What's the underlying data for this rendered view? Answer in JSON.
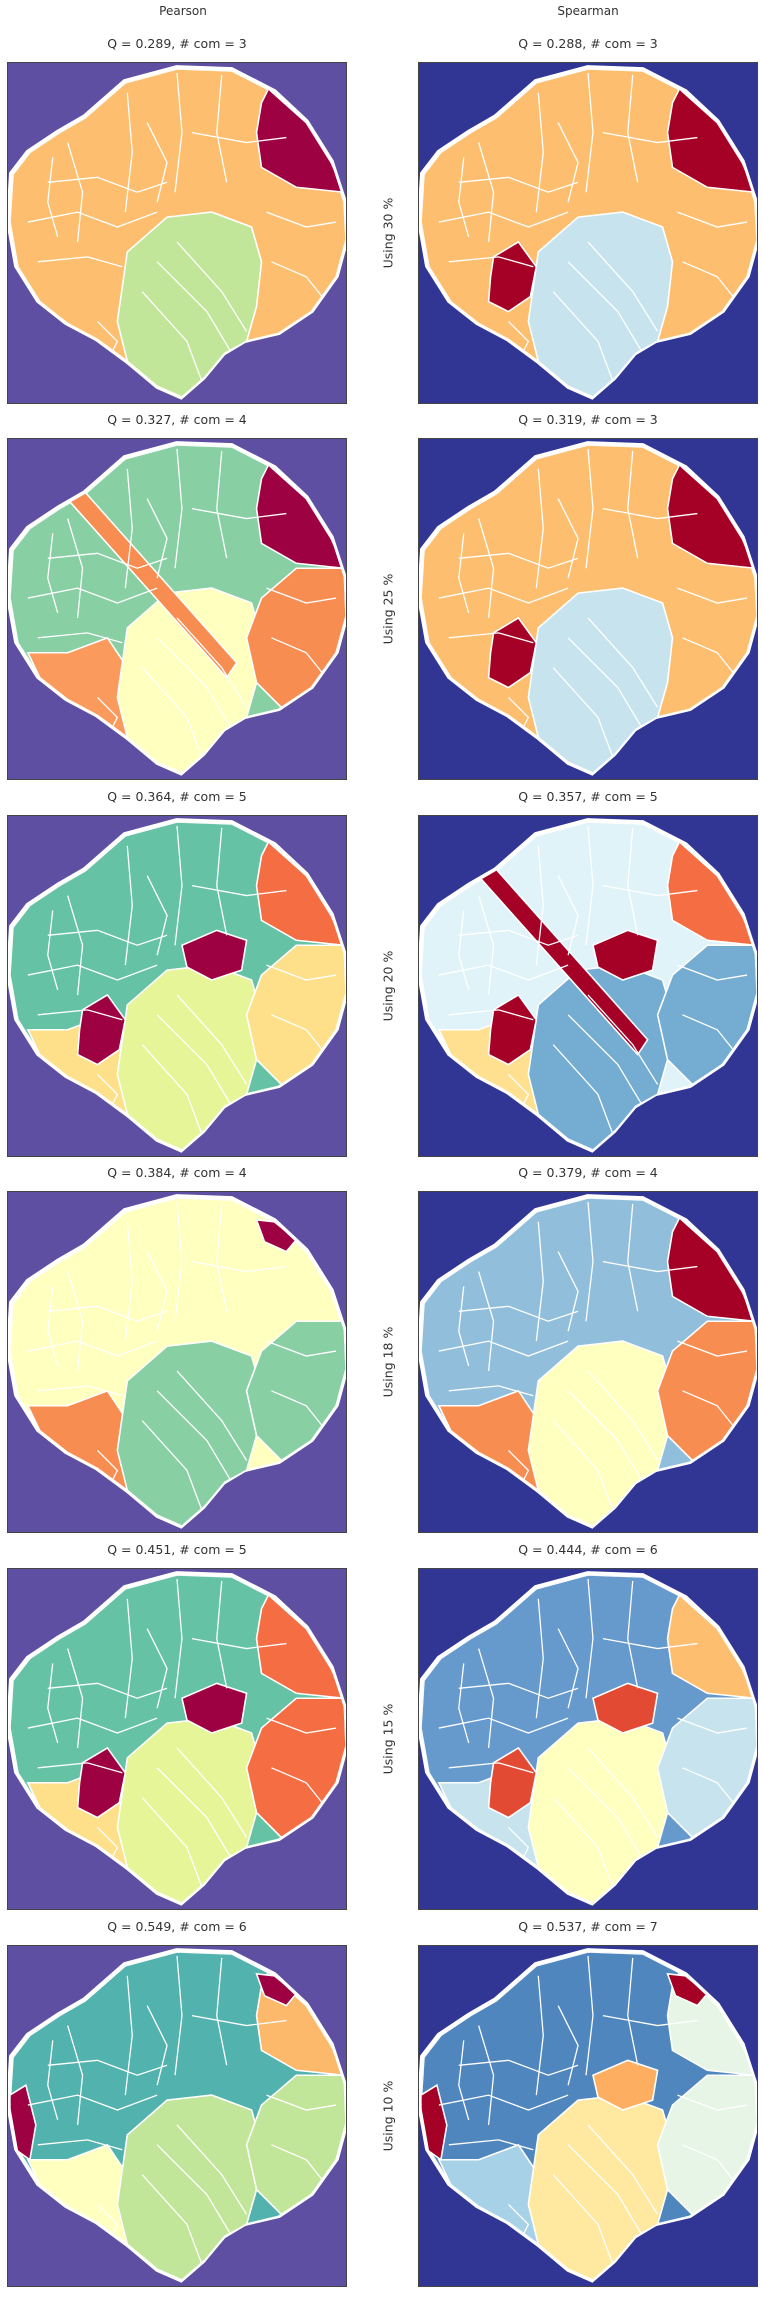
{
  "columns": [
    "Pearson",
    "Spearman"
  ],
  "rows": [
    {
      "label": "Using 30 %",
      "pearson": "Q = 0.289,  # com = 3",
      "spearman": "Q = 0.288,  # com = 3"
    },
    {
      "label": "Using 25 %",
      "pearson": "Q = 0.327,  # com = 4",
      "spearman": "Q = 0.319,  # com = 3"
    },
    {
      "label": "Using 20 %",
      "pearson": "Q = 0.364,  # com = 5",
      "spearman": "Q = 0.357,  # com = 5"
    },
    {
      "label": "Using 18 %",
      "pearson": "Q = 0.384,  # com = 4",
      "spearman": "Q = 0.379,  # com = 4"
    },
    {
      "label": "Using 15 %",
      "pearson": "Q = 0.451,  # com = 5",
      "spearman": "Q = 0.444,  # com = 6"
    },
    {
      "label": "Using 10 %",
      "pearson": "Q = 0.549,  # com = 6",
      "spearman": "Q = 0.537,  # com = 7"
    }
  ],
  "colors": {
    "pearson_background": "#5e4fa2",
    "spearman_background": "#313695",
    "boundary": "#ffffff"
  }
}
